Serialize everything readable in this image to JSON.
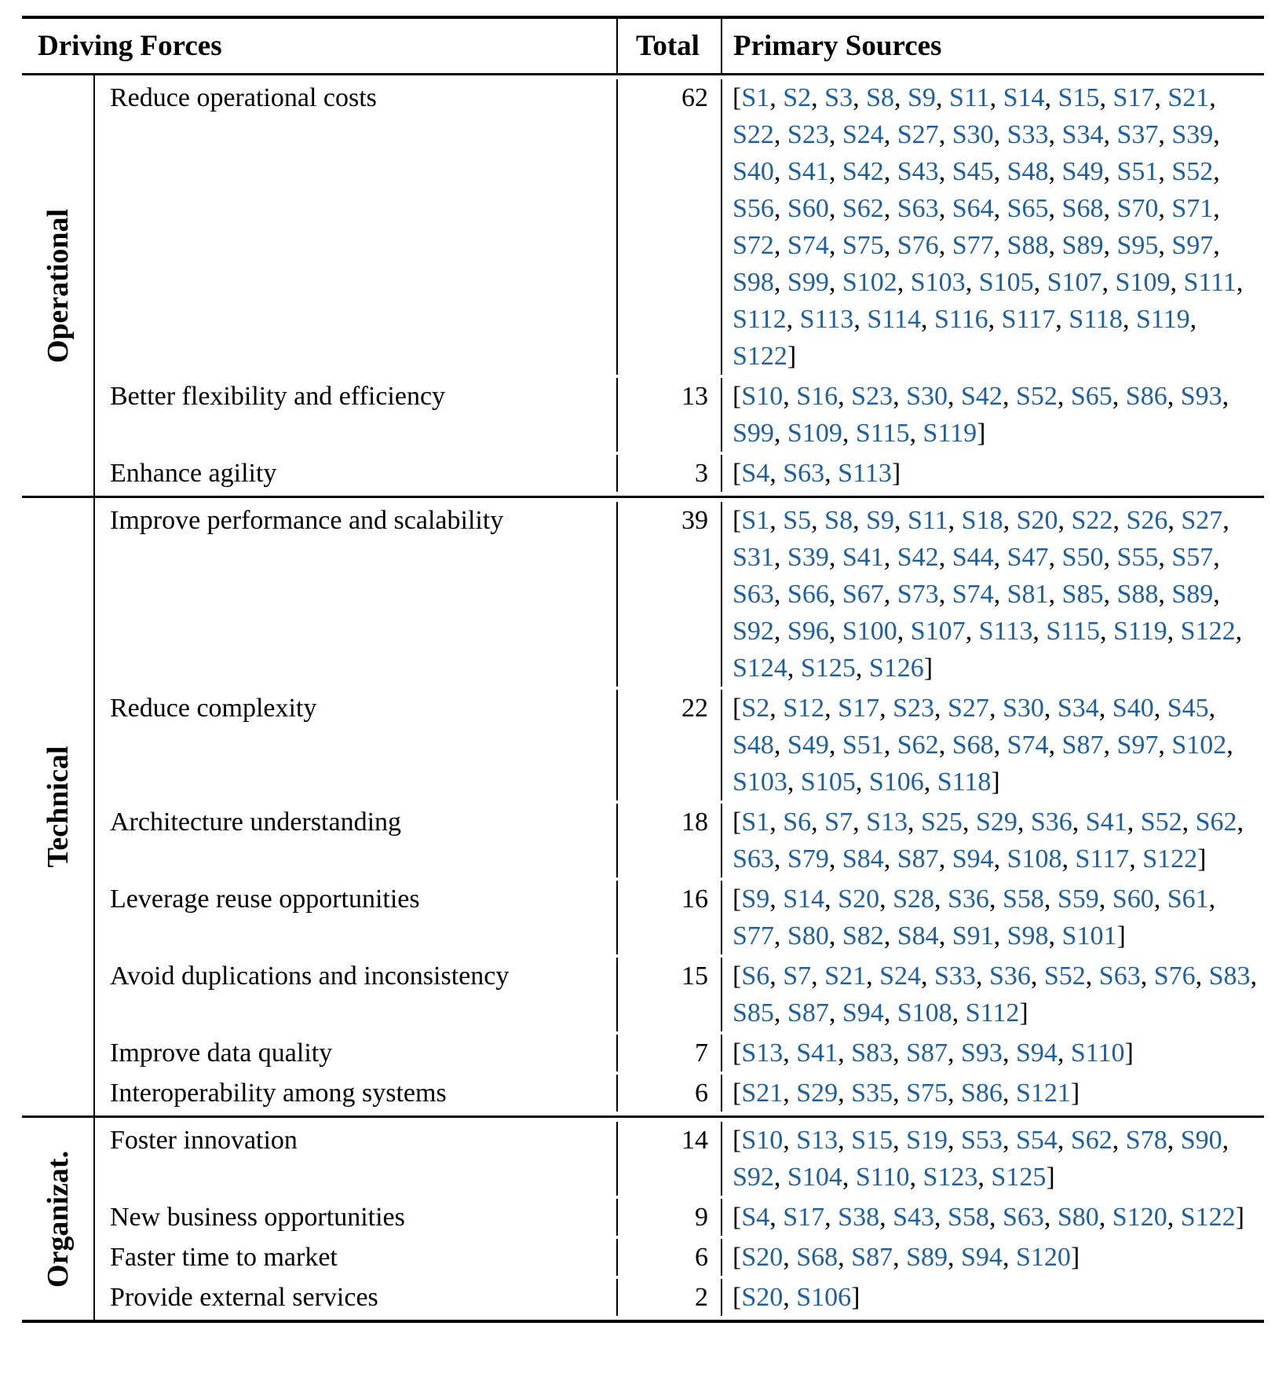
{
  "header": {
    "driving_forces": "Driving Forces",
    "total": "Total",
    "primary_sources": "Primary Sources"
  },
  "colors": {
    "source_link": "#1e5f9e",
    "rule": "#000000",
    "text": "#000000",
    "background": "#ffffff"
  },
  "sections": [
    {
      "group": "Operational",
      "rows": [
        {
          "force": "Reduce operational costs",
          "total": "62",
          "sources": [
            "S1",
            "S2",
            "S3",
            "S8",
            "S9",
            "S11",
            "S14",
            "S15",
            "S17",
            "S21",
            "S22",
            "S23",
            "S24",
            "S27",
            "S30",
            "S33",
            "S34",
            "S37",
            "S39",
            "S40",
            "S41",
            "S42",
            "S43",
            "S45",
            "S48",
            "S49",
            "S51",
            "S52",
            "S56",
            "S60",
            "S62",
            "S63",
            "S64",
            "S65",
            "S68",
            "S70",
            "S71",
            "S72",
            "S74",
            "S75",
            "S76",
            "S77",
            "S88",
            "S89",
            "S95",
            "S97",
            "S98",
            "S99",
            "S102",
            "S103",
            "S105",
            "S107",
            "S109",
            "S111",
            "S112",
            "S113",
            "S114",
            "S116",
            "S117",
            "S118",
            "S119",
            "S122"
          ]
        },
        {
          "force": "Better flexibility and efficiency",
          "total": "13",
          "sources": [
            "S10",
            "S16",
            "S23",
            "S30",
            "S42",
            "S52",
            "S65",
            "S86",
            "S93",
            "S99",
            "S109",
            "S115",
            "S119"
          ]
        },
        {
          "force": "Enhance agility",
          "total": "3",
          "sources": [
            "S4",
            "S63",
            "S113"
          ]
        }
      ]
    },
    {
      "group": "Technical",
      "rows": [
        {
          "force": "Improve performance and scalability",
          "total": "39",
          "sources": [
            "S1",
            "S5",
            "S8",
            "S9",
            "S11",
            "S18",
            "S20",
            "S22",
            "S26",
            "S27",
            "S31",
            "S39",
            "S41",
            "S42",
            "S44",
            "S47",
            "S50",
            "S55",
            "S57",
            "S63",
            "S66",
            "S67",
            "S73",
            "S74",
            "S81",
            "S85",
            "S88",
            "S89",
            "S92",
            "S96",
            "S100",
            "S107",
            "S113",
            "S115",
            "S119",
            "S122",
            "S124",
            "S125",
            "S126"
          ]
        },
        {
          "force": "Reduce complexity",
          "total": "22",
          "sources": [
            "S2",
            "S12",
            "S17",
            "S23",
            "S27",
            "S30",
            "S34",
            "S40",
            "S45",
            "S48",
            "S49",
            "S51",
            "S62",
            "S68",
            "S74",
            "S87",
            "S97",
            "S102",
            "S103",
            "S105",
            "S106",
            "S118"
          ]
        },
        {
          "force": "Architecture understanding",
          "total": "18",
          "sources": [
            "S1",
            "S6",
            "S7",
            "S13",
            "S25",
            "S29",
            "S36",
            "S41",
            "S52",
            "S62",
            "S63",
            "S79",
            "S84",
            "S87",
            "S94",
            "S108",
            "S117",
            "S122"
          ]
        },
        {
          "force": "Leverage reuse opportunities",
          "total": "16",
          "sources": [
            "S9",
            "S14",
            "S20",
            "S28",
            "S36",
            "S58",
            "S59",
            "S60",
            "S61",
            "S77",
            "S80",
            "S82",
            "S84",
            "S91",
            "S98",
            "S101"
          ]
        },
        {
          "force": "Avoid duplications and inconsistency",
          "total": "15",
          "sources": [
            "S6",
            "S7",
            "S21",
            "S24",
            "S33",
            "S36",
            "S52",
            "S63",
            "S76",
            "S83",
            "S85",
            "S87",
            "S94",
            "S108",
            "S112"
          ]
        },
        {
          "force": "Improve data quality",
          "total": "7",
          "sources": [
            "S13",
            "S41",
            "S83",
            "S87",
            "S93",
            "S94",
            "S110"
          ]
        },
        {
          "force": "Interoperability among systems",
          "total": "6",
          "sources": [
            "S21",
            "S29",
            "S35",
            "S75",
            "S86",
            "S121"
          ]
        }
      ]
    },
    {
      "group": "Organizat.",
      "rows": [
        {
          "force": "Foster innovation",
          "total": "14",
          "sources": [
            "S10",
            "S13",
            "S15",
            "S19",
            "S53",
            "S54",
            "S62",
            "S78",
            "S90",
            "S92",
            "S104",
            "S110",
            "S123",
            "S125"
          ]
        },
        {
          "force": "New business opportunities",
          "total": "9",
          "sources": [
            "S4",
            "S17",
            "S38",
            "S43",
            "S58",
            "S63",
            "S80",
            "S120",
            "S122"
          ]
        },
        {
          "force": "Faster time to market",
          "total": "6",
          "sources": [
            "S20",
            "S68",
            "S87",
            "S89",
            "S94",
            "S120"
          ]
        },
        {
          "force": "Provide external services",
          "total": "2",
          "sources": [
            "S20",
            "S106"
          ]
        }
      ]
    }
  ]
}
